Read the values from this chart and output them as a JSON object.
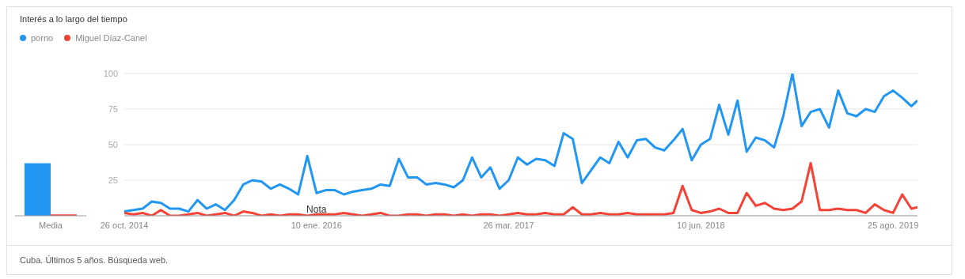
{
  "chart_data": [
    {
      "type": "bar",
      "title": "Interés a lo largo del tiempo",
      "categories": [
        "Media"
      ],
      "ylim": [
        0,
        100
      ],
      "tick_labels": "x",
      "series": [
        {
          "color": "#2196f3",
          "values": [
            37
          ]
        },
        {
          "color": "#f44336",
          "values": [
            1
          ]
        }
      ]
    },
    {
      "type": "line",
      "legend": "top left",
      "grid": "y",
      "marker": "none",
      "line_style": "solid",
      "annotations": [
        {
          "text": "Nota",
          "x": "2016-01-10"
        },
        "Cuba. Últimos 5 años. Búsqueda web."
      ],
      "x": [
        "2014-10-26",
        "2014-11-16",
        "2014-12-07",
        "2014-12-28",
        "2015-01-18",
        "2015-02-08",
        "2015-03-01",
        "2015-03-22",
        "2015-04-12",
        "2015-05-03",
        "2015-05-24",
        "2015-06-14",
        "2015-07-05",
        "2015-07-26",
        "2015-08-16",
        "2015-09-06",
        "2015-09-27",
        "2015-10-18",
        "2015-11-08",
        "2015-11-29",
        "2015-12-20",
        "2016-01-10",
        "2016-01-31",
        "2016-02-21",
        "2016-03-13",
        "2016-04-03",
        "2016-04-24",
        "2016-05-15",
        "2016-06-05",
        "2016-06-26",
        "2016-07-17",
        "2016-08-07",
        "2016-08-28",
        "2016-09-18",
        "2016-10-09",
        "2016-10-30",
        "2016-11-20",
        "2016-12-11",
        "2017-01-01",
        "2017-01-22",
        "2017-02-12",
        "2017-03-05",
        "2017-03-26",
        "2017-04-16",
        "2017-05-07",
        "2017-05-28",
        "2017-06-18",
        "2017-07-09",
        "2017-07-30",
        "2017-08-20",
        "2017-09-10",
        "2017-10-01",
        "2017-10-22",
        "2017-11-12",
        "2017-12-03",
        "2017-12-24",
        "2018-01-14",
        "2018-02-04",
        "2018-02-25",
        "2018-03-18",
        "2018-04-08",
        "2018-04-29",
        "2018-05-20",
        "2018-06-10",
        "2018-07-01",
        "2018-07-22",
        "2018-08-12",
        "2018-09-02",
        "2018-09-23",
        "2018-10-14",
        "2018-11-04",
        "2018-11-25",
        "2018-12-16",
        "2019-01-06",
        "2019-01-27",
        "2019-02-17",
        "2019-03-10",
        "2019-03-31",
        "2019-04-21",
        "2019-05-12",
        "2019-06-02",
        "2019-06-23",
        "2019-07-14",
        "2019-08-04",
        "2019-08-25",
        "2019-09-15",
        "2019-10-06",
        "2019-10-20"
      ],
      "xlim": [
        "2014-10-26",
        "2019-10-20"
      ],
      "xticks": [
        {
          "value": "2014-10-26",
          "label": "26 oct. 2014"
        },
        {
          "value": "2016-01-10",
          "label": "10 ene. 2016"
        },
        {
          "value": "2017-03-26",
          "label": "26 mar. 2017"
        },
        {
          "value": "2018-06-10",
          "label": "10 jun. 2018"
        },
        {
          "value": "2019-08-25",
          "label": "25 ago. 2019"
        }
      ],
      "ylim": [
        0,
        100
      ],
      "yticks": [
        {
          "value": 0,
          "label": null
        },
        25,
        50,
        75,
        100
      ],
      "series": [
        {
          "name": "porno",
          "color": "#2196f3",
          "values": [
            3,
            4,
            5,
            10,
            9,
            5,
            5,
            3,
            11,
            5,
            8,
            4,
            11,
            22,
            25,
            24,
            19,
            22,
            19,
            15,
            42,
            16,
            18,
            18,
            15,
            17,
            18,
            19,
            22,
            21,
            40,
            27,
            27,
            22,
            23,
            22,
            20,
            25,
            41,
            27,
            34,
            19,
            25,
            41,
            36,
            40,
            39,
            35,
            58,
            54,
            23,
            32,
            41,
            37,
            52,
            41,
            53,
            54,
            48,
            46,
            53,
            61,
            39,
            50,
            54,
            78,
            57,
            81,
            45,
            55,
            53,
            48,
            70,
            100,
            63,
            73,
            75,
            62,
            88,
            72,
            70,
            75,
            73,
            84,
            88,
            83,
            77,
            81
          ]
        },
        {
          "name": "Miguel Díaz-Canel",
          "color": "#f44336",
          "values": [
            2,
            1,
            2,
            0,
            4,
            0,
            0,
            1,
            2,
            0,
            1,
            2,
            0,
            3,
            2,
            0,
            1,
            0,
            1,
            1,
            0,
            1,
            1,
            1,
            2,
            1,
            0,
            1,
            2,
            0,
            0,
            1,
            1,
            0,
            1,
            1,
            0,
            1,
            0,
            1,
            1,
            0,
            1,
            2,
            1,
            1,
            2,
            1,
            1,
            6,
            1,
            1,
            2,
            1,
            1,
            2,
            1,
            1,
            1,
            1,
            2,
            21,
            4,
            2,
            3,
            5,
            2,
            2,
            16,
            7,
            9,
            5,
            4,
            5,
            10,
            37,
            4,
            4,
            5,
            4,
            4,
            2,
            8,
            4,
            2,
            15,
            5,
            6
          ]
        }
      ]
    }
  ]
}
